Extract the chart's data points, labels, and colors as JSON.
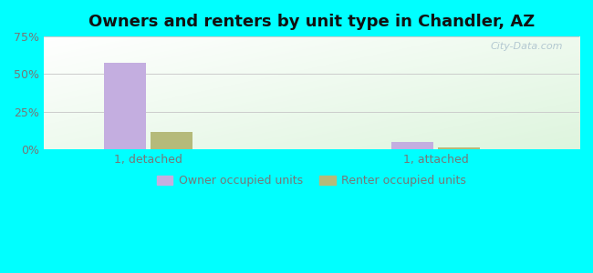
{
  "title": "Owners and renters by unit type in Chandler, AZ",
  "title_fontsize": 13,
  "categories": [
    "1, detached",
    "1, attached"
  ],
  "owner_values": [
    57.5,
    5.0
  ],
  "renter_values": [
    11.5,
    1.2
  ],
  "owner_color": "#c4aee0",
  "renter_color": "#b5ba7a",
  "ylim": [
    0,
    75
  ],
  "yticks": [
    0,
    25,
    50,
    75
  ],
  "ytick_labels": [
    "0%",
    "25%",
    "50%",
    "75%"
  ],
  "background_outer": "#00ffff",
  "grid_color": "#cccccc",
  "tick_color": "#777777",
  "legend_labels": [
    "Owner occupied units",
    "Renter occupied units"
  ],
  "bar_width": 0.32,
  "group_positions": [
    1.0,
    3.2
  ],
  "xlim": [
    0.2,
    4.3
  ],
  "watermark": "City-Data.com"
}
